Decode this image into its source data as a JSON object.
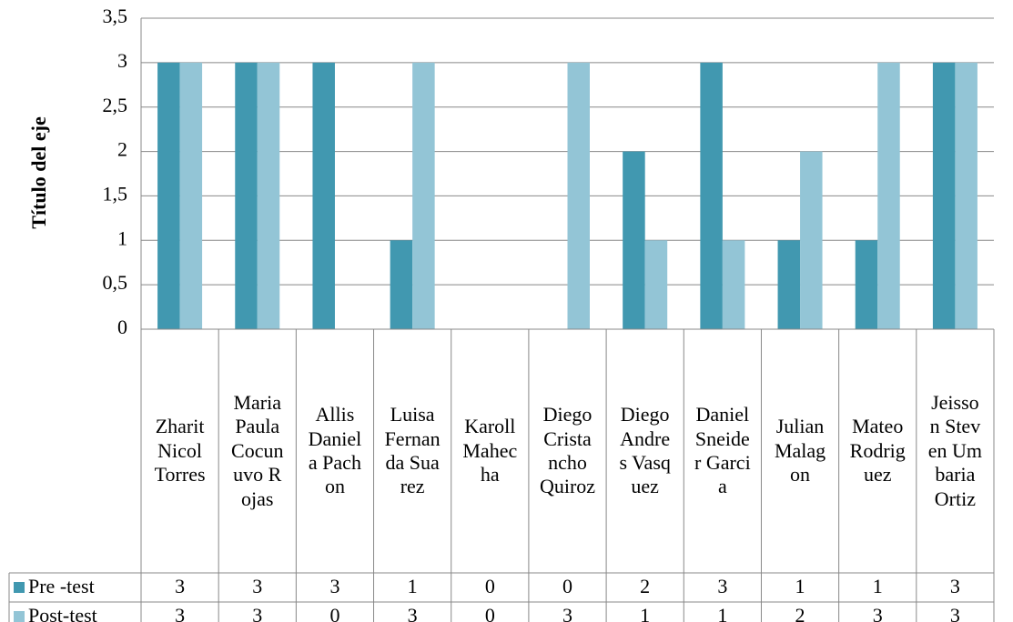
{
  "chart_data": {
    "type": "bar",
    "y_label": "Título del eje",
    "categories": [
      "Zharit Nicol Torres",
      "Maria Paula Cocunuvo Rojas",
      "Allis Daniela Pachon",
      "Luisa Fernanda Suarez",
      "Karoll Mahecha",
      "Diego Cristancho Quiroz",
      "Diego Andres Vasquez",
      "Daniel Sneider Garcia",
      "Julian Malagon",
      "Mateo Rodriguez",
      "Jeisson Steven Umbaria Ortiz"
    ],
    "series": [
      {
        "name": "Pre -test",
        "color": "#4198b0",
        "values": [
          3,
          3,
          3,
          1,
          0,
          0,
          2,
          3,
          1,
          1,
          3
        ]
      },
      {
        "name": "Post-test",
        "color": "#93c5d6",
        "values": [
          3,
          3,
          0,
          3,
          0,
          3,
          1,
          1,
          2,
          3,
          3
        ]
      }
    ],
    "ylim": [
      0,
      3.5
    ],
    "yticks": [
      0,
      {
        "value": 0.5,
        "label": "0,5"
      },
      1,
      {
        "value": 1.5,
        "label": "1,5"
      },
      2,
      {
        "value": 2.5,
        "label": "2,5"
      },
      3,
      {
        "value": 3.5,
        "label": "3,5"
      }
    ],
    "grid": true,
    "data_table": true
  }
}
